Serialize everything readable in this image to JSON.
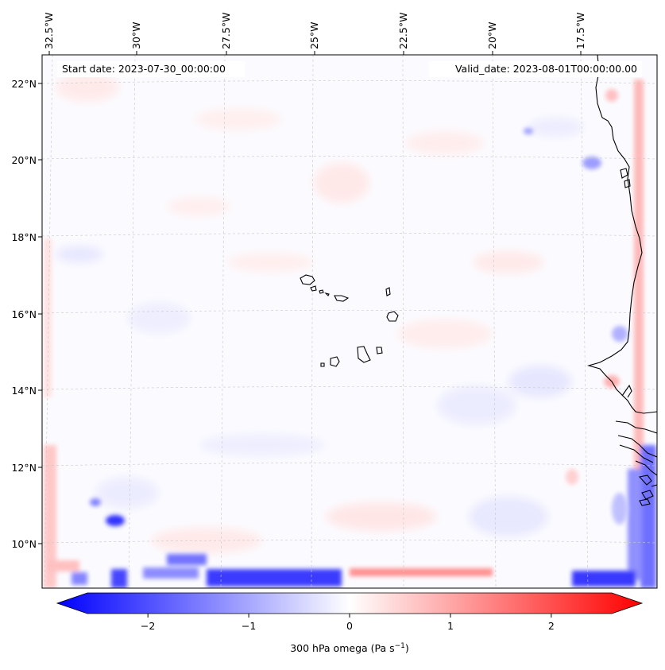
{
  "map": {
    "start_date": "Start date: 2023-07-30_00:00:00",
    "valid_date": "Valid_date: 2023-08-01T00:00:00.00",
    "top_lon_labels": [
      "32.5°W",
      "30°W",
      "27.5°W",
      "25°W",
      "22.5°W",
      "20°W",
      "17.5°W"
    ],
    "lat_labels": [
      "22°N",
      "20°N",
      "18°N",
      "16°N",
      "14°N",
      "12°N",
      "10°N"
    ]
  },
  "colorbar": {
    "ticks": [
      "−2",
      "−1",
      "0",
      "1",
      "2"
    ],
    "label": "300 hPa omega (Pa s",
    "label_sup": "−1",
    "label_end": ")",
    "vmin": -2.6,
    "vmax": 2.6,
    "color_min": "#0000ff",
    "color_mid": "#ffffff",
    "color_max": "#ff0000"
  }
}
